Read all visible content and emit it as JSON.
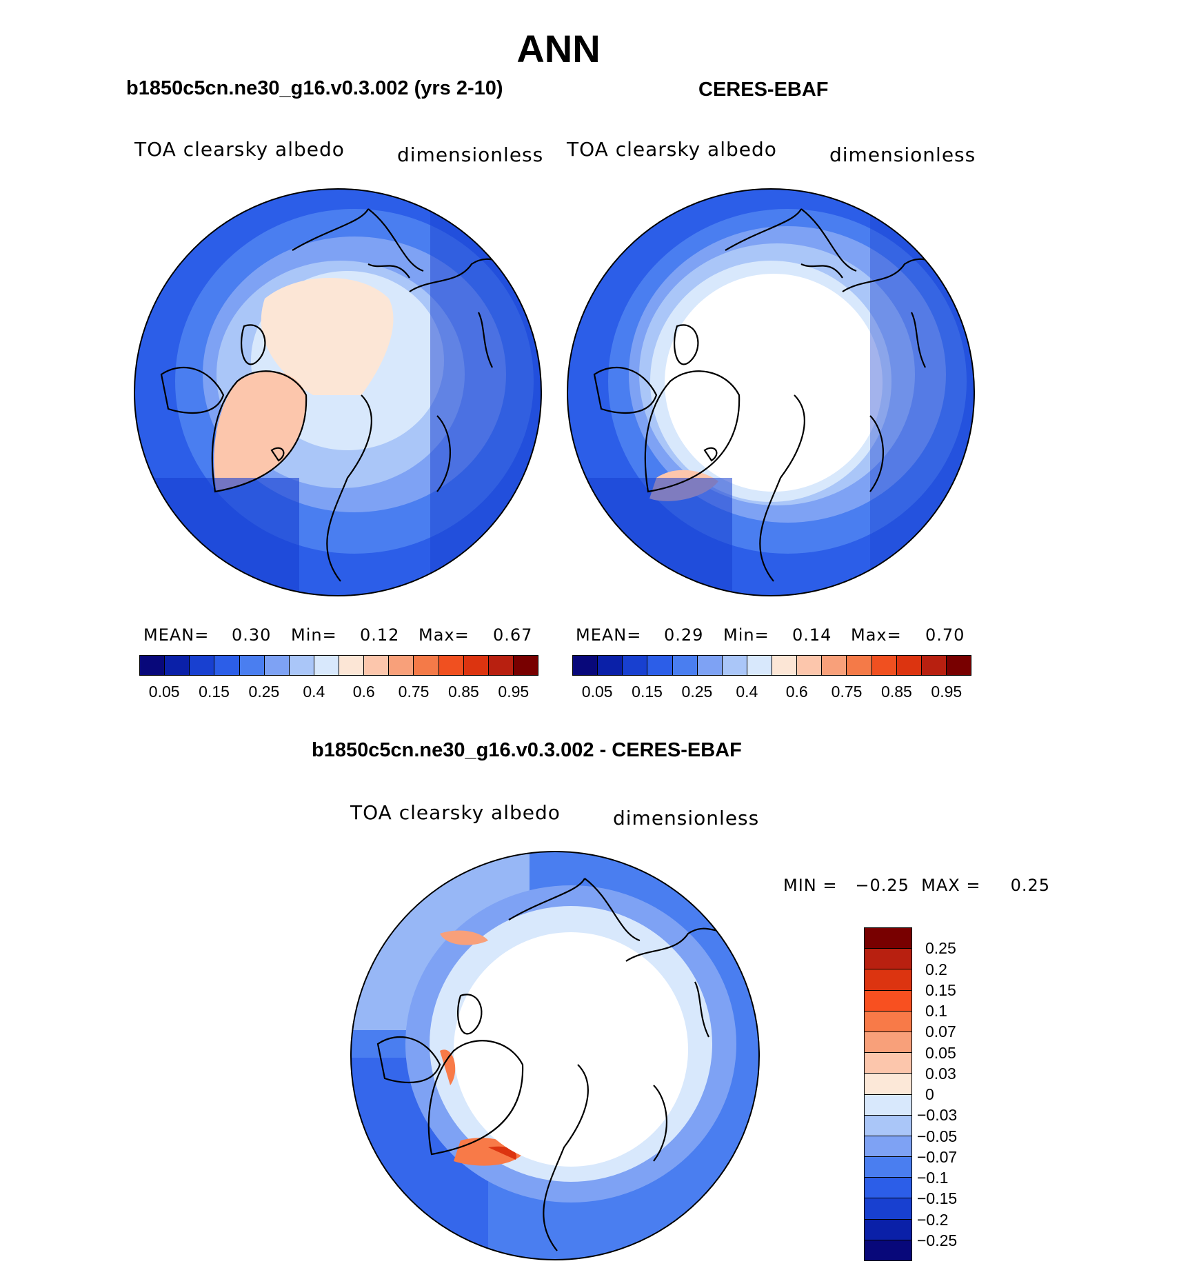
{
  "figure": {
    "title": "ANN",
    "panels": [
      {
        "case_title": "b1850c5cn.ne30_g16.v0.3.002 (yrs 2-10)",
        "variable": "TOA clearsky albedo",
        "units": "dimensionless",
        "stats": {
          "mean_label": "MEAN=",
          "mean": "0.30",
          "min_label": "Min=",
          "min": "0.12",
          "max_label": "Max=",
          "max": "0.67"
        }
      },
      {
        "case_title": "CERES-EBAF",
        "variable": "TOA clearsky albedo",
        "units": "dimensionless",
        "stats": {
          "mean_label": "MEAN=",
          "mean": "0.29",
          "min_label": "Min=",
          "min": "0.14",
          "max_label": "Max=",
          "max": "0.70"
        }
      }
    ],
    "diff_panel": {
      "case_title": "b1850c5cn.ne30_g16.v0.3.002 - CERES-EBAF",
      "variable": "TOA clearsky albedo",
      "units": "dimensionless",
      "range_text": "MIN =   −0.25  MAX =     0.25"
    },
    "colorbar": {
      "colors": [
        "#08087a",
        "#0a20a8",
        "#1840d0",
        "#2c5ee8",
        "#4a7ef0",
        "#7ea2f4",
        "#aac6f8",
        "#d8e8fc",
        "#fce6d6",
        "#fcc6ac",
        "#f8a07a",
        "#f47a48",
        "#f05020",
        "#dc3410",
        "#b82010",
        "#780000"
      ],
      "labels": [
        "0.05",
        "0.15",
        "0.25",
        "0.4",
        "0.6",
        "0.75",
        "0.85",
        "0.95"
      ]
    },
    "diff_colorbar": {
      "colors": [
        "#780000",
        "#b82010",
        "#dc3410",
        "#f85020",
        "#f87a48",
        "#f8a07a",
        "#fcc6ac",
        "#fce8d8",
        "#d8e8fc",
        "#aac6f8",
        "#7ea2f4",
        "#4a7ef0",
        "#2c5ee8",
        "#1840d0",
        "#0a20a8",
        "#08087a"
      ],
      "labels": [
        "0.25",
        "0.2",
        "0.15",
        "0.1",
        "0.07",
        "0.05",
        "0.03",
        "0",
        "−0.03",
        "−0.05",
        "−0.07",
        "−0.1",
        "−0.15",
        "−0.2",
        "−0.25"
      ]
    }
  }
}
